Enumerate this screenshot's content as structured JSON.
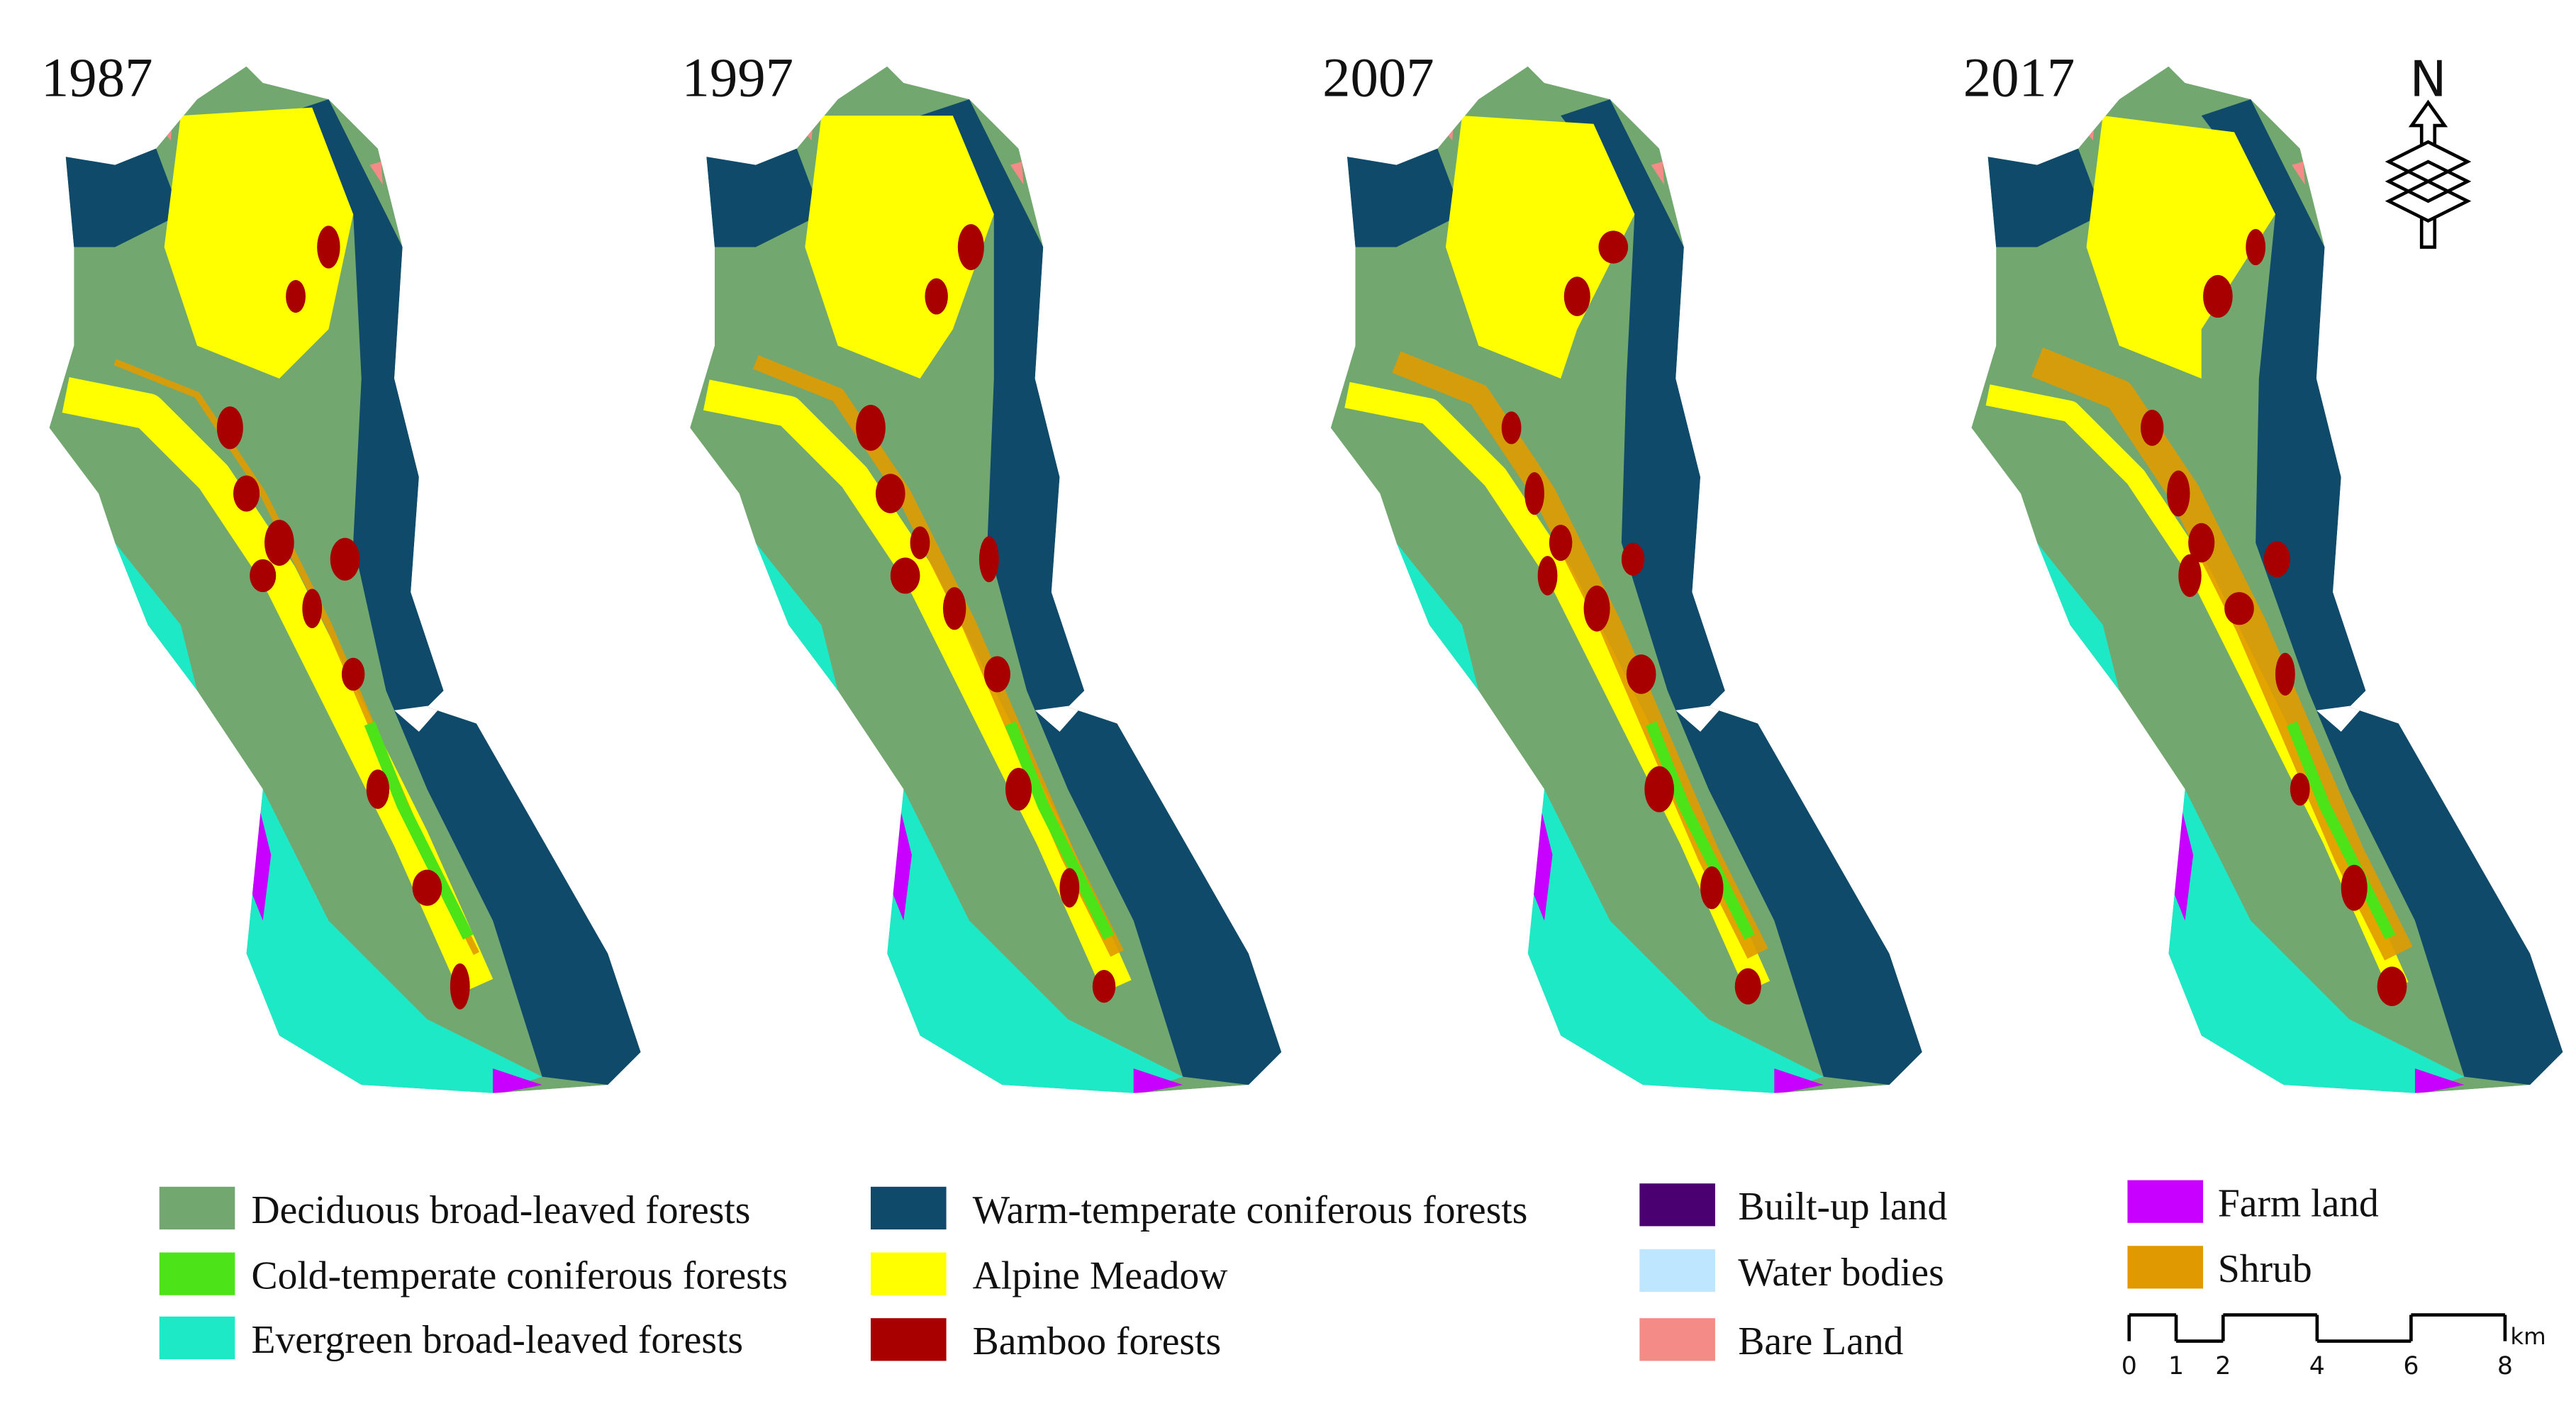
{
  "panels": [
    {
      "year": "1987"
    },
    {
      "year": "1997"
    },
    {
      "year": "2007"
    },
    {
      "year": "2017"
    }
  ],
  "north": "N",
  "legend": [
    {
      "label": "Deciduous broad-leaved forests",
      "color": "#72a870"
    },
    {
      "label": "Cold-temperate coniferous forests",
      "color": "#4ce319"
    },
    {
      "label": "Evergreen broad-leaved forests",
      "color": "#1de9c6"
    },
    {
      "label": "Warm-temperate coniferous forests",
      "color": "#0f4a6b"
    },
    {
      "label": "Alpine Meadow",
      "color": "#ffff00"
    },
    {
      "label": "Bamboo forests",
      "color": "#a80000"
    },
    {
      "label": "Built-up land",
      "color": "#4b0072"
    },
    {
      "label": "Water bodies",
      "color": "#bee6ff"
    },
    {
      "label": "Bare Land",
      "color": "#f58b86"
    },
    {
      "label": "Farm land",
      "color": "#c800ff"
    },
    {
      "label": "Shrub",
      "color": "#e09a00"
    }
  ],
  "scale_bar": {
    "ticks": [
      0,
      1,
      2,
      4,
      6,
      8
    ],
    "unit": "km"
  }
}
